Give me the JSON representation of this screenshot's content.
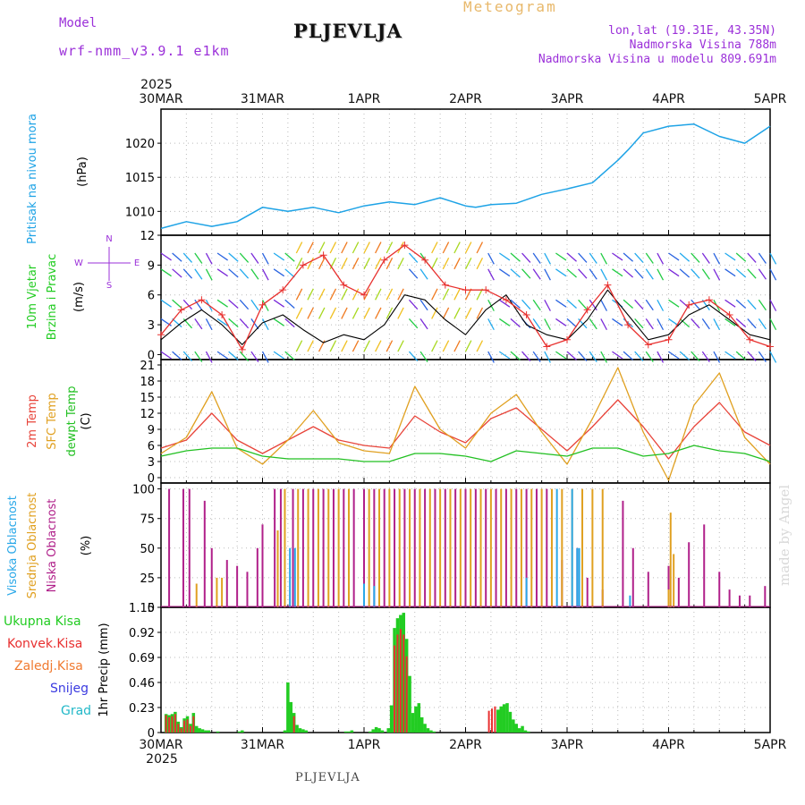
{
  "header": {
    "model_label": "Model",
    "model_value": "wrf-nmm_v3.9.1 e1km",
    "station": "PLJEVLJA",
    "meteogram": "Meteogram",
    "lonlat": "lon,lat (19.31E, 43.35N)",
    "elevation": "Nadmorska Visina 788m",
    "model_elevation": "Nadmorska Visina u modelu 809.691m"
  },
  "footer": {
    "station": "PLJEVLJA",
    "credit": "made by Angel"
  },
  "time_axis": {
    "year": "2025",
    "labels": [
      "30MAR",
      "31MAR",
      "1APR",
      "2APR",
      "3APR",
      "4APR",
      "5APR"
    ]
  },
  "colors": {
    "pressure": "#1ea3e6",
    "wind_speed": "#000000",
    "gust": "#e8302e",
    "temp2m": "#e8443a",
    "sfc_temp": "#e0a020",
    "dewpt": "#22c022",
    "cloud_high": "#2aa8e8",
    "cloud_mid": "#e0a020",
    "cloud_low": "#b0208a",
    "precip_total": "#22cc22",
    "precip_conv": "#e83030",
    "wind_label": "#9b30d9"
  },
  "chart_data": [
    {
      "type": "line",
      "name": "pressure",
      "ylabel_line1": "Pritisak na nivou mora",
      "ylabel_line2": "(hPa)",
      "ylim": [
        1006.5,
        1025
      ],
      "yticks": [
        "1010",
        "1015",
        "1020"
      ],
      "ytick_values": [
        1010,
        1015,
        1020
      ],
      "x": [
        0,
        0.25,
        0.5,
        0.75,
        1.0,
        1.25,
        1.5,
        1.75,
        2.0,
        2.25,
        2.5,
        2.75,
        3.0,
        3.1,
        3.25,
        3.5,
        3.75,
        4.0,
        4.25,
        4.5,
        4.6,
        4.75,
        5.0,
        5.25,
        5.5,
        5.75,
        6.0
      ],
      "y": [
        1007.5,
        1008.5,
        1007.8,
        1008.5,
        1010.6,
        1010.0,
        1010.6,
        1009.8,
        1010.8,
        1011.4,
        1011.0,
        1012.0,
        1010.8,
        1010.6,
        1011.0,
        1011.2,
        1012.5,
        1013.3,
        1014.2,
        1017.5,
        1019.0,
        1021.5,
        1022.5,
        1022.8,
        1021.0,
        1020.0,
        1022.5
      ]
    },
    {
      "type": "line",
      "name": "wind",
      "ylabel_line1": "10m Vjetar",
      "ylabel_line2": "Brzina i Pravac",
      "ylabel_unit": "(m/s)",
      "compass": {
        "north": "N",
        "south": "S",
        "west": "W",
        "east": "E"
      },
      "ylim": [
        -0.5,
        12
      ],
      "yticks": [
        "0",
        "3",
        "6",
        "9",
        "12"
      ],
      "ytick_values": [
        0,
        3,
        6,
        9,
        12
      ],
      "series": [
        {
          "name": "wind_speed",
          "x": [
            0,
            0.2,
            0.4,
            0.6,
            0.8,
            1.0,
            1.2,
            1.4,
            1.6,
            1.8,
            2.0,
            2.2,
            2.4,
            2.6,
            2.8,
            3.0,
            3.2,
            3.4,
            3.6,
            3.8,
            4.0,
            4.2,
            4.4,
            4.6,
            4.8,
            5.0,
            5.2,
            5.4,
            5.6,
            5.8,
            6.0
          ],
          "y": [
            1.5,
            3.2,
            4.5,
            3.0,
            1.0,
            3.2,
            4.0,
            2.5,
            1.2,
            2.0,
            1.5,
            3.0,
            6.0,
            5.5,
            3.5,
            2.0,
            4.5,
            6.0,
            3.0,
            2.0,
            1.5,
            3.5,
            6.5,
            4.0,
            1.5,
            2.0,
            4.0,
            5.0,
            3.5,
            2.0,
            1.5
          ]
        },
        {
          "name": "gust",
          "x": [
            0,
            0.2,
            0.4,
            0.6,
            0.8,
            1.0,
            1.2,
            1.4,
            1.6,
            1.8,
            2.0,
            2.2,
            2.4,
            2.6,
            2.8,
            3.0,
            3.2,
            3.4,
            3.6,
            3.8,
            4.0,
            4.2,
            4.4,
            4.6,
            4.8,
            5.0,
            5.2,
            5.4,
            5.6,
            5.8,
            6.0
          ],
          "y": [
            2.0,
            4.5,
            5.5,
            4.0,
            0.5,
            5.0,
            6.5,
            9.0,
            10.0,
            7.0,
            6.0,
            9.5,
            11.0,
            9.5,
            7.0,
            6.5,
            6.5,
            5.5,
            4.0,
            0.8,
            1.5,
            4.5,
            7.0,
            3.0,
            1.0,
            1.5,
            5.0,
            5.5,
            4.0,
            1.5,
            0.8
          ]
        }
      ]
    },
    {
      "type": "line",
      "name": "temperature",
      "ylabel_line1": "2m Temp",
      "ylabel_line2": "SFC Temp",
      "ylabel_line3": "dewpt Temp",
      "ylabel_unit": "(C)",
      "ylim": [
        -1,
        22
      ],
      "yticks": [
        "0",
        "3",
        "6",
        "9",
        "12",
        "15",
        "18",
        "21"
      ],
      "ytick_values": [
        0,
        3,
        6,
        9,
        12,
        15,
        18,
        21
      ],
      "x": [
        0,
        0.25,
        0.5,
        0.75,
        1.0,
        1.25,
        1.5,
        1.75,
        2.0,
        2.25,
        2.5,
        2.75,
        3.0,
        3.25,
        3.5,
        3.75,
        4.0,
        4.25,
        4.5,
        4.75,
        5.0,
        5.25,
        5.5,
        5.75,
        6.0
      ],
      "series": [
        {
          "name": "temp2m",
          "y": [
            5.5,
            7.0,
            12.0,
            7.0,
            4.5,
            7.0,
            9.5,
            7.0,
            6.0,
            5.5,
            11.5,
            8.5,
            6.5,
            11.0,
            13.0,
            9.0,
            5.0,
            9.5,
            14.5,
            9.5,
            3.5,
            9.5,
            14.0,
            8.5,
            6.0
          ]
        },
        {
          "name": "sfc_temp",
          "y": [
            4.5,
            7.5,
            16.0,
            5.5,
            2.5,
            7.0,
            12.5,
            6.5,
            5.0,
            4.5,
            17.0,
            9.0,
            5.5,
            12.0,
            15.5,
            8.5,
            2.5,
            11.0,
            20.5,
            8.5,
            -0.5,
            13.5,
            19.5,
            7.5,
            2.5
          ]
        },
        {
          "name": "dewpt",
          "y": [
            4.0,
            5.0,
            5.5,
            5.5,
            4.0,
            3.5,
            3.5,
            3.5,
            3.0,
            3.0,
            4.5,
            4.5,
            4.0,
            3.0,
            5.0,
            4.5,
            4.0,
            5.5,
            5.5,
            4.0,
            4.5,
            6.0,
            5.0,
            4.5,
            3.0
          ]
        }
      ]
    },
    {
      "type": "bar",
      "name": "cloud_cover",
      "ylabel_line1": "Visoka Oblacnost",
      "ylabel_line2": "Srednja Oblacnost",
      "ylabel_line3": "Niska Oblacnost",
      "ylabel_unit": "(%)",
      "ylim": [
        0,
        105
      ],
      "yticks": [
        "0",
        "25",
        "50",
        "75",
        "100"
      ],
      "ytick_values": [
        0,
        25,
        50,
        75,
        100
      ],
      "series": [
        {
          "name": "cloud_low",
          "x": [
            0.08,
            0.22,
            0.28,
            0.43,
            0.5,
            0.65,
            0.75,
            0.85,
            0.95,
            1.0,
            1.12,
            1.18,
            1.3,
            1.4,
            1.5,
            1.6,
            1.7,
            1.8,
            1.9,
            2.0,
            2.1,
            2.2,
            2.3,
            2.4,
            2.5,
            2.6,
            2.7,
            2.8,
            2.9,
            3.0,
            3.1,
            3.2,
            3.3,
            3.4,
            3.5,
            3.6,
            3.7,
            3.8,
            3.95,
            4.1,
            4.2,
            4.35,
            4.55,
            4.65,
            4.8,
            5.0,
            5.1,
            5.2,
            5.35,
            5.5,
            5.6,
            5.7,
            5.8,
            5.95
          ],
          "y": [
            100,
            100,
            100,
            90,
            50,
            40,
            35,
            30,
            50,
            70,
            100,
            100,
            100,
            100,
            100,
            100,
            100,
            100,
            100,
            100,
            100,
            100,
            100,
            100,
            100,
            100,
            100,
            100,
            100,
            100,
            100,
            100,
            100,
            100,
            100,
            100,
            100,
            100,
            40,
            50,
            25,
            15,
            90,
            50,
            30,
            35,
            25,
            55,
            70,
            30,
            15,
            10,
            10,
            18
          ]
        },
        {
          "name": "cloud_mid",
          "x": [
            0.35,
            0.55,
            0.6,
            1.15,
            1.22,
            1.35,
            1.45,
            1.55,
            1.65,
            1.75,
            1.85,
            2.05,
            2.15,
            2.25,
            2.35,
            2.45,
            2.55,
            2.65,
            2.75,
            2.85,
            2.95,
            3.05,
            3.15,
            3.25,
            3.35,
            3.45,
            3.55,
            3.65,
            3.75,
            3.85,
            3.95,
            4.05,
            4.15,
            4.25,
            4.35,
            5.0,
            5.02,
            5.05
          ],
          "y": [
            20,
            25,
            25,
            65,
            100,
            100,
            100,
            100,
            100,
            100,
            100,
            100,
            100,
            100,
            100,
            100,
            100,
            100,
            100,
            100,
            100,
            100,
            100,
            100,
            100,
            100,
            100,
            100,
            100,
            100,
            100,
            100,
            100,
            100,
            100,
            15,
            80,
            45
          ]
        },
        {
          "name": "cloud_high",
          "x": [
            1.27,
            1.32,
            2.0,
            2.1,
            3.6,
            3.9,
            4.05,
            4.1,
            4.12,
            4.62
          ],
          "y": [
            50,
            50,
            20,
            18,
            25,
            100,
            100,
            50,
            50,
            10
          ]
        }
      ]
    },
    {
      "type": "bar",
      "name": "precipitation",
      "legend": [
        "Ukupna Kisa",
        "Konvek.Kisa",
        "Zaledj.Kisa",
        "Snijeg",
        "Grad"
      ],
      "ylabel": "1hr Precip (mm)",
      "ylim": [
        0,
        1.15
      ],
      "yticks": [
        "0",
        "0.23",
        "0.46",
        "0.69",
        "0.92",
        "1.15"
      ],
      "ytick_values": [
        0,
        0.23,
        0.46,
        0.69,
        0.92,
        1.15
      ],
      "series": [
        {
          "name": "precip_total",
          "x": [
            0.05,
            0.08,
            0.11,
            0.14,
            0.17,
            0.2,
            0.23,
            0.26,
            0.29,
            0.32,
            0.35,
            0.38,
            0.41,
            0.44,
            0.47,
            0.5,
            0.53,
            0.56,
            0.59,
            0.62,
            0.65,
            0.68,
            0.71,
            0.74,
            0.77,
            0.8,
            0.83,
            0.86,
            0.89,
            0.92,
            0.95,
            0.98,
            1.01,
            1.04,
            1.07,
            1.1,
            1.13,
            1.16,
            1.19,
            1.22,
            1.25,
            1.28,
            1.31,
            1.34,
            1.37,
            1.4,
            1.43,
            1.46,
            1.49,
            1.52,
            1.55,
            1.58,
            1.61,
            1.64,
            1.67,
            1.7,
            1.73,
            1.76,
            1.79,
            1.82,
            1.85,
            1.88,
            1.91,
            1.94,
            1.97,
            2.0,
            2.03,
            2.06,
            2.09,
            2.12,
            2.15,
            2.18,
            2.21,
            2.24,
            2.27,
            2.3,
            2.33,
            2.36,
            2.39,
            2.42,
            2.45,
            2.48,
            2.51,
            2.54,
            2.57,
            2.6,
            2.63,
            2.66,
            2.69,
            2.72,
            2.75,
            2.78,
            2.81,
            2.84,
            2.87,
            2.9,
            2.93,
            2.96,
            2.99,
            3.02,
            3.05,
            3.08,
            3.11,
            3.14,
            3.17,
            3.2,
            3.23,
            3.26,
            3.29,
            3.32,
            3.35,
            3.38,
            3.41,
            3.44,
            3.47,
            3.5,
            3.53,
            3.56,
            3.59,
            3.62,
            3.65,
            3.68,
            3.71,
            3.74,
            3.77,
            3.8,
            3.83,
            3.86,
            3.89,
            3.92,
            3.95,
            3.98
          ],
          "y": [
            0.17,
            0.16,
            0.17,
            0.19,
            0.1,
            0.05,
            0.13,
            0.15,
            0.08,
            0.18,
            0.06,
            0.04,
            0.03,
            0.02,
            0.02,
            0.0,
            0.0,
            0.01,
            0.0,
            0.0,
            0.0,
            0.0,
            0.0,
            0.0,
            0.01,
            0.02,
            0.0,
            0.0,
            0.0,
            0.0,
            0.0,
            0.0,
            0.0,
            0.0,
            0.0,
            0.0,
            0.0,
            0.0,
            0.0,
            0.02,
            0.46,
            0.28,
            0.18,
            0.07,
            0.04,
            0.03,
            0.02,
            0.0,
            0.0,
            0.0,
            0.0,
            0.0,
            0.0,
            0.0,
            0.0,
            0.0,
            0.0,
            0.0,
            0.0,
            0.01,
            0.01,
            0.02,
            0.0,
            0.0,
            0.0,
            0.0,
            0.0,
            0.01,
            0.03,
            0.05,
            0.04,
            0.02,
            0.0,
            0.04,
            0.25,
            0.96,
            1.05,
            1.08,
            1.1,
            0.86,
            0.52,
            0.18,
            0.24,
            0.27,
            0.14,
            0.08,
            0.04,
            0.02,
            0.01,
            0.0,
            0.0,
            0.0,
            0.0,
            0.0,
            0.0,
            0.0,
            0.0,
            0.0,
            0.0,
            0.0,
            0.0,
            0.0,
            0.0,
            0.0,
            0.0,
            0.0,
            0.0,
            0.0,
            0.0,
            0.21,
            0.24,
            0.26,
            0.27,
            0.19,
            0.12,
            0.08,
            0.04,
            0.06,
            0.02,
            0.01,
            0.0,
            0.0,
            0.0,
            0.0,
            0.0,
            0.0,
            0.0,
            0.0,
            0.0,
            0.0,
            0.0,
            0.0
          ]
        },
        {
          "name": "precip_conv",
          "x": [
            0.05,
            0.08,
            0.11,
            0.14,
            0.17,
            0.2,
            0.23,
            0.26,
            0.29,
            0.32,
            1.31,
            2.3,
            2.33,
            2.36,
            2.39,
            2.42,
            3.23,
            3.26,
            3.29
          ],
          "y": [
            0.16,
            0.14,
            0.15,
            0.17,
            0.08,
            0.04,
            0.11,
            0.12,
            0.06,
            0.15,
            0.15,
            0.8,
            0.9,
            0.95,
            0.9,
            0.7,
            0.2,
            0.22,
            0.24
          ]
        }
      ]
    }
  ]
}
